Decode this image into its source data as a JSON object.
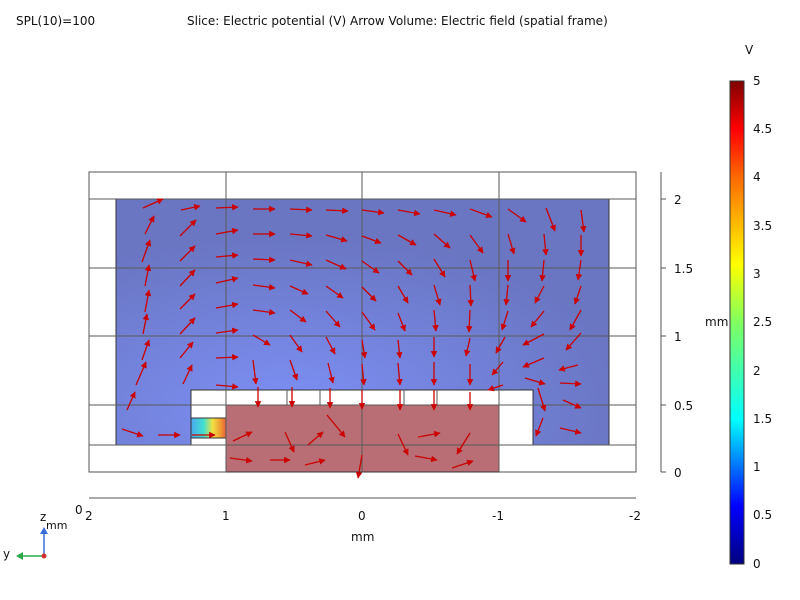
{
  "header": {
    "spl": "SPL(10)=100",
    "title": "Slice: Electric potential (V)  Arrow Volume: Electric field (spatial frame)"
  },
  "colorbar": {
    "unit": "V",
    "ticks": [
      "5",
      "4.5",
      "4",
      "3.5",
      "3",
      "2.5",
      "2",
      "1.5",
      "1",
      "0.5",
      "0"
    ]
  },
  "axes": {
    "x_unit": "mm",
    "x_ticks": [
      "2",
      "1",
      "0",
      "-1",
      "-2"
    ],
    "z_unit": "mm",
    "z_ticks": [
      "2",
      "1.5",
      "1",
      "0.5",
      "0"
    ],
    "origin": "0"
  },
  "triad": {
    "z": "z",
    "y": "y",
    "unit": "mm"
  },
  "colors": {
    "low_region": "#6a76c2",
    "high_region": "#b56a72",
    "arrow": "#cc0000",
    "grid": "#5a5a5a"
  }
}
